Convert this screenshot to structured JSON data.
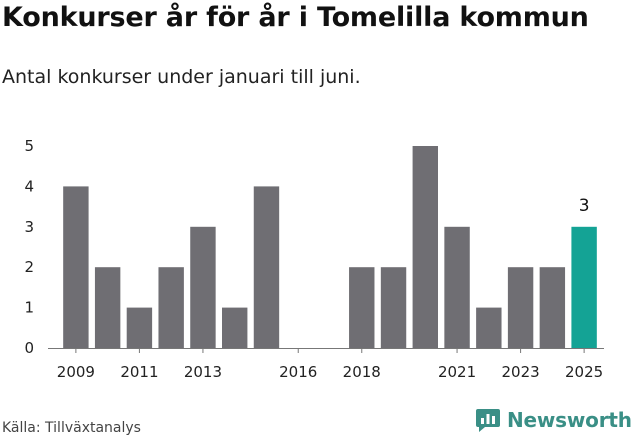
{
  "header": {
    "title": "Konkurser år för år i Tomelilla kommun",
    "subtitle": "Antal konkurser under januari till juni."
  },
  "footer": {
    "source": "Källa: Tillväxtanalys",
    "brand": "Newsworthy",
    "brand_icon": "newsworthy-logo-icon"
  },
  "colors": {
    "bar": "#6f6e73",
    "highlight": "#14a395",
    "brand": "#3a8f86"
  },
  "chart_data": {
    "type": "bar",
    "categories": [
      "2009",
      "2010",
      "2011",
      "2012",
      "2013",
      "2014",
      "2015",
      "2016",
      "2017",
      "2018",
      "2019",
      "2020",
      "2021",
      "2022",
      "2023",
      "2024",
      "2025"
    ],
    "values": [
      4,
      2,
      1,
      2,
      3,
      1,
      4,
      0,
      0,
      2,
      2,
      5,
      3,
      1,
      2,
      2,
      3
    ],
    "x_tick_labels": [
      "2009",
      "2011",
      "2013",
      "2016",
      "2018",
      "2021",
      "2023",
      "2025"
    ],
    "y_ticks": [
      0,
      1,
      2,
      3,
      4,
      5
    ],
    "ylim": [
      0,
      5
    ],
    "highlight_category": "2025",
    "data_labels": [
      {
        "category": "2025",
        "text": "3"
      }
    ],
    "grid": false
  }
}
